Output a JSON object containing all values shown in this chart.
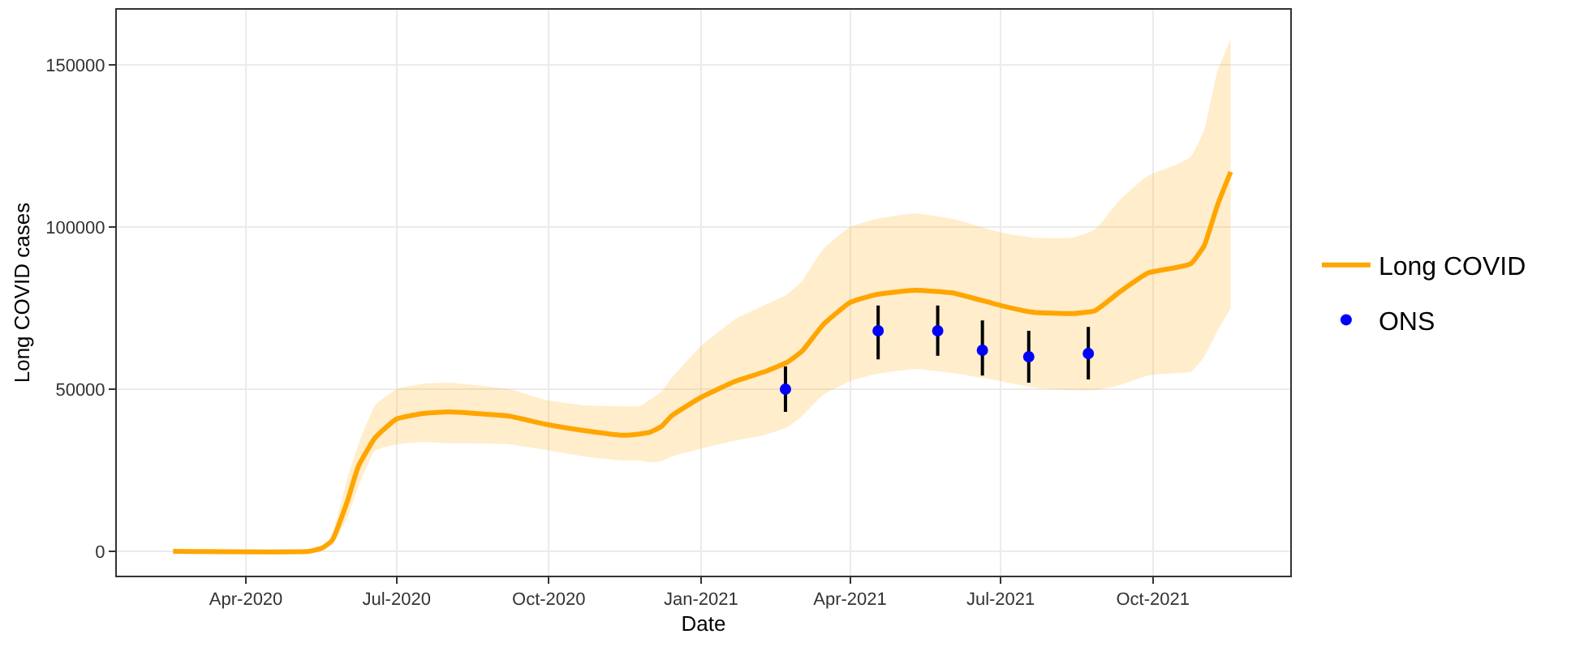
{
  "chart_data": {
    "type": "line",
    "xlabel": "Date",
    "ylabel": "Long COVID cases",
    "xlim": [
      "2020-01-14",
      "2021-12-23"
    ],
    "ylim": [
      -7500,
      167000
    ],
    "xticks": [
      {
        "value": "2020-04-01",
        "label": "Apr-2020"
      },
      {
        "value": "2020-07-01",
        "label": "Jul-2020"
      },
      {
        "value": "2020-10-01",
        "label": "Oct-2020"
      },
      {
        "value": "2021-01-01",
        "label": "Jan-2021"
      },
      {
        "value": "2021-04-01",
        "label": "Apr-2021"
      },
      {
        "value": "2021-07-01",
        "label": "Jul-2021"
      },
      {
        "value": "2021-10-01",
        "label": "Oct-2021"
      }
    ],
    "yticks": [
      0,
      50000,
      100000,
      150000
    ],
    "grid": true,
    "legend": "right",
    "series": [
      {
        "name": "Long COVID",
        "color": "#ffa500",
        "x": [
          "2020-02-17",
          "2020-05-09",
          "2020-05-17",
          "2020-05-23",
          "2020-06-01",
          "2020-06-08",
          "2020-06-18",
          "2020-07-01",
          "2020-07-17",
          "2020-08-02",
          "2020-09-07",
          "2020-09-29",
          "2020-10-23",
          "2020-11-15",
          "2020-11-25",
          "2020-12-01",
          "2020-12-08",
          "2020-12-14",
          "2021-01-01",
          "2021-01-22",
          "2021-02-08",
          "2021-02-22",
          "2021-03-03",
          "2021-03-16",
          "2021-04-01",
          "2021-04-17",
          "2021-05-10",
          "2021-06-02",
          "2021-07-01",
          "2021-07-21",
          "2021-08-13",
          "2021-08-27",
          "2021-09-11",
          "2021-09-28",
          "2021-10-15",
          "2021-10-24",
          "2021-11-01",
          "2021-11-09",
          "2021-11-17"
        ],
        "values": [
          0,
          0,
          1000,
          3300,
          15000,
          26300,
          35000,
          40800,
          42500,
          43000,
          41700,
          39200,
          37200,
          35800,
          36200,
          36700,
          38500,
          41700,
          47500,
          52500,
          55300,
          58300,
          61700,
          70000,
          76700,
          79200,
          80500,
          79700,
          75800,
          73700,
          73300,
          74200,
          80000,
          85800,
          87500,
          88700,
          94200,
          106700,
          117000
        ],
        "upper": [
          0,
          0,
          1000,
          5000,
          22000,
          33000,
          45000,
          50000,
          51700,
          52000,
          50000,
          46700,
          45000,
          44700,
          44800,
          46700,
          49200,
          53300,
          63300,
          71700,
          75800,
          79200,
          83300,
          93300,
          100000,
          102500,
          104200,
          102500,
          98300,
          96700,
          96700,
          99200,
          108300,
          115800,
          119200,
          121700,
          130000,
          148000,
          158000
        ],
        "lower": [
          0,
          0,
          1000,
          2000,
          10000,
          20000,
          31000,
          33000,
          33700,
          33300,
          33000,
          31300,
          29200,
          28000,
          28000,
          27500,
          27800,
          29200,
          31700,
          34200,
          35800,
          38300,
          41700,
          48300,
          52500,
          54700,
          56200,
          55000,
          52500,
          50500,
          49700,
          49700,
          51300,
          54200,
          55000,
          55300,
          60000,
          68000,
          75000
        ]
      },
      {
        "name": "ONS",
        "type": "scatter",
        "color": "#0000ff",
        "marker": "circle",
        "x": [
          "2021-02-21",
          "2021-04-18",
          "2021-05-24",
          "2021-06-20",
          "2021-07-18",
          "2021-08-23"
        ],
        "values": [
          50000,
          68000,
          68000,
          62000,
          60000,
          61000
        ],
        "errors": [
          [
            43000,
            57000
          ],
          [
            59200,
            75800
          ],
          [
            60300,
            75800
          ],
          [
            54200,
            71200
          ],
          [
            52000,
            68000
          ],
          [
            53000,
            69200
          ]
        ]
      }
    ]
  }
}
